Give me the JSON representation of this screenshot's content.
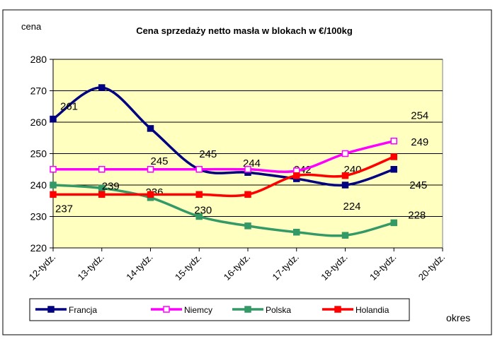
{
  "chart_data": {
    "type": "line",
    "title": "Cena sprzedaży netto masła  w blokach  w €/100kg",
    "y_label": "cena",
    "x_label": "okres",
    "categories": [
      "12-tydz.",
      "13-tydz.",
      "14-tydz.",
      "15-tydz.",
      "16-tydz.",
      "17-tydz.",
      "18-tydz.",
      "19-tydz.",
      "20-tydz."
    ],
    "series": [
      {
        "name": "Francja",
        "color": "#000080",
        "values": [
          261,
          271,
          258,
          245,
          244,
          242,
          240,
          245,
          null
        ],
        "value_labels": [
          "261",
          null,
          null,
          "245",
          "244",
          "242",
          "240",
          "245",
          null
        ]
      },
      {
        "name": "Niemcy",
        "color": "#FF00FF",
        "values": [
          245,
          245,
          245,
          245,
          245,
          244.5,
          250,
          254,
          null
        ],
        "value_labels": [
          null,
          null,
          "245",
          null,
          null,
          null,
          null,
          "254",
          null
        ]
      },
      {
        "name": "Polska",
        "color": "#339966",
        "values": [
          240,
          239,
          236,
          230,
          227,
          225,
          224,
          228,
          null
        ],
        "value_labels": [
          null,
          "239",
          "236",
          "230",
          null,
          null,
          "224",
          "228",
          null
        ]
      },
      {
        "name": "Holandia",
        "color": "#FF0000",
        "values": [
          237,
          237,
          237,
          237,
          237,
          243,
          243,
          249,
          null
        ],
        "value_labels": [
          "237",
          null,
          null,
          null,
          null,
          null,
          null,
          "249",
          null
        ]
      }
    ],
    "ylim": [
      220,
      280
    ],
    "yticks": [
      220,
      230,
      240,
      250,
      260,
      270,
      280
    ],
    "grid": true,
    "legend": "bottom"
  }
}
